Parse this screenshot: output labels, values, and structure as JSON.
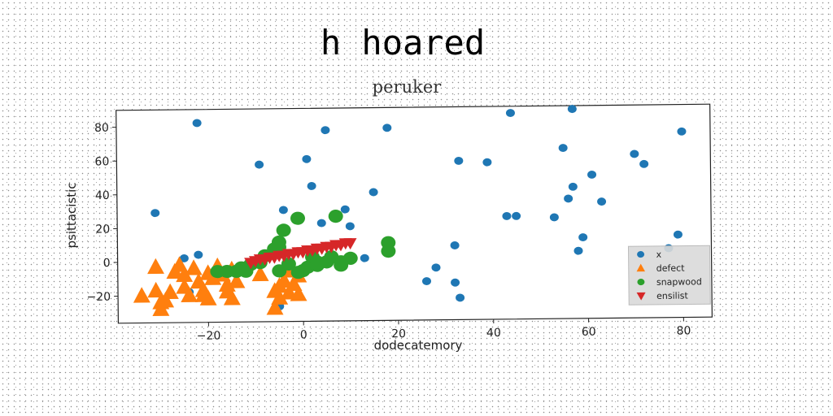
{
  "title": "h hoared",
  "chart_data": {
    "type": "scatter",
    "title": "peruker",
    "xlabel": "dodecatemory",
    "ylabel": "psittacistic",
    "xlim": [
      -39,
      86
    ],
    "ylim": [
      -36,
      90
    ],
    "xticks": [
      -20,
      0,
      20,
      40,
      60,
      80
    ],
    "yticks": [
      -20,
      0,
      20,
      40,
      60,
      80
    ],
    "xtick_labels": [
      "−20",
      "0",
      "20",
      "40",
      "60",
      "80"
    ],
    "ytick_labels": [
      "−20",
      "0",
      "20",
      "40",
      "60",
      "80"
    ],
    "grid": false,
    "legend_position": "lower-right",
    "series": [
      {
        "name": "x",
        "marker": "circle",
        "color": "#1f77b4",
        "points": [
          [
            -22,
            82
          ],
          [
            -31,
            29
          ],
          [
            5,
            77
          ],
          [
            18,
            78
          ],
          [
            -9,
            57
          ],
          [
            1,
            60
          ],
          [
            2,
            44
          ],
          [
            -4,
            30
          ],
          [
            4,
            22
          ],
          [
            9,
            30
          ],
          [
            10,
            20
          ],
          [
            15,
            40
          ],
          [
            13,
            1
          ],
          [
            -25,
            2
          ],
          [
            -22,
            4
          ],
          [
            -24,
            -18
          ],
          [
            -5,
            -27
          ],
          [
            33,
            -23
          ],
          [
            28,
            -5
          ],
          [
            26,
            -13
          ],
          [
            32,
            -14
          ],
          [
            32,
            8
          ],
          [
            33,
            58
          ],
          [
            39,
            57
          ],
          [
            44,
            86
          ],
          [
            43,
            25
          ],
          [
            45,
            25
          ],
          [
            53,
            24
          ],
          [
            55,
            65
          ],
          [
            57,
            88
          ],
          [
            57,
            42
          ],
          [
            56,
            35
          ],
          [
            61,
            49
          ],
          [
            63,
            33
          ],
          [
            59,
            12
          ],
          [
            58,
            4
          ],
          [
            70,
            61
          ],
          [
            72,
            55
          ],
          [
            77,
            5
          ],
          [
            79,
            13
          ],
          [
            80,
            74
          ]
        ]
      },
      {
        "name": "defect",
        "marker": "triangle-up",
        "color": "#ff7f0e",
        "points": [
          [
            -31,
            -3
          ],
          [
            -34,
            -20
          ],
          [
            -31,
            -17
          ],
          [
            -30,
            -24
          ],
          [
            -30,
            -28
          ],
          [
            -29,
            -23
          ],
          [
            -28,
            -18
          ],
          [
            -27,
            -6
          ],
          [
            -26,
            -2
          ],
          [
            -25,
            -8
          ],
          [
            -25,
            -15
          ],
          [
            -24,
            -20
          ],
          [
            -23,
            -4
          ],
          [
            -22,
            -12
          ],
          [
            -21,
            -17
          ],
          [
            -21,
            -20
          ],
          [
            -20,
            -7
          ],
          [
            -20,
            -22
          ],
          [
            -19,
            -10
          ],
          [
            -18,
            -3
          ],
          [
            -17,
            -8
          ],
          [
            -16,
            -14
          ],
          [
            -16,
            -18
          ],
          [
            -15,
            -22
          ],
          [
            -15,
            -5
          ],
          [
            -14,
            -12
          ],
          [
            -9,
            -8
          ],
          [
            -6,
            -18
          ],
          [
            -6,
            -28
          ],
          [
            -5,
            -15
          ],
          [
            -5,
            -22
          ],
          [
            -4,
            -12
          ],
          [
            -3,
            -19
          ],
          [
            -3,
            -6
          ],
          [
            -2,
            -14
          ],
          [
            -1,
            -9
          ],
          [
            -1,
            -20
          ]
        ]
      },
      {
        "name": "snapwood",
        "marker": "circle",
        "color": "#2ca02c",
        "points": [
          [
            -18,
            -6
          ],
          [
            -16,
            -6
          ],
          [
            -14,
            -6
          ],
          [
            -13,
            -4
          ],
          [
            -12,
            -6
          ],
          [
            -11,
            -2
          ],
          [
            -9,
            -1
          ],
          [
            -8,
            3
          ],
          [
            -6,
            7
          ],
          [
            -5,
            8
          ],
          [
            -5,
            -6
          ],
          [
            -5,
            11
          ],
          [
            -4,
            18
          ],
          [
            -3,
            -2
          ],
          [
            -1,
            -7
          ],
          [
            -1,
            25
          ],
          [
            0,
            -6
          ],
          [
            1,
            -4
          ],
          [
            2,
            2
          ],
          [
            3,
            -1
          ],
          [
            3,
            -3
          ],
          [
            5,
            -1
          ],
          [
            6,
            2
          ],
          [
            7,
            26
          ],
          [
            8,
            -1
          ],
          [
            8,
            -3
          ],
          [
            10,
            1
          ],
          [
            18,
            10
          ],
          [
            18,
            5
          ]
        ]
      },
      {
        "name": "ensilist",
        "marker": "triangle-down",
        "color": "#d62728",
        "points": [
          [
            -11,
            -1
          ],
          [
            -10,
            0
          ],
          [
            -9,
            1
          ],
          [
            -8,
            1
          ],
          [
            -7,
            2
          ],
          [
            -6,
            2
          ],
          [
            -5,
            3
          ],
          [
            -4,
            3
          ],
          [
            -3,
            4
          ],
          [
            -2,
            4
          ],
          [
            -1,
            5
          ],
          [
            0,
            5
          ],
          [
            1,
            6
          ],
          [
            2,
            6
          ],
          [
            3,
            7
          ],
          [
            4,
            7
          ],
          [
            5,
            8
          ],
          [
            6,
            8
          ],
          [
            7,
            9
          ],
          [
            8,
            9
          ],
          [
            9,
            10
          ],
          [
            10,
            10
          ]
        ]
      }
    ]
  }
}
